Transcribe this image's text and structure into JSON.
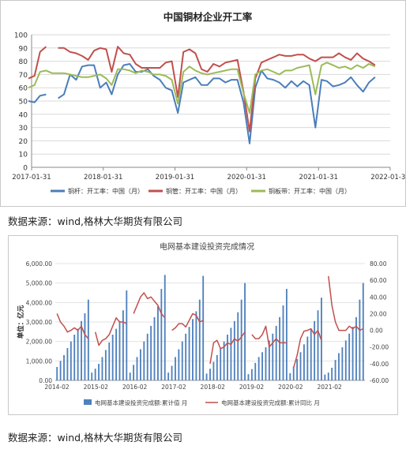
{
  "source_note_1": "数据来源：wind,格林大华期货有限公司",
  "source_note_2": "数据来源：wind,格林大华期货有限公司",
  "chart_data": [
    {
      "type": "line",
      "title": "中国铜材企业开工率",
      "xlabel": "",
      "ylabel": "",
      "ylim": [
        0,
        100
      ],
      "yticks": [
        0,
        10,
        20,
        30,
        40,
        50,
        60,
        70,
        80,
        90,
        100
      ],
      "xlim": [
        "2017-01-31",
        "2022-01-31"
      ],
      "xticks": [
        "2017-01-31",
        "2018-01-31",
        "2019-01-31",
        "2020-01-31",
        "2021-01-31",
        "2022-01-31"
      ],
      "grid": true,
      "legend": "bottom",
      "series": [
        {
          "name": "铜杆：开工率：中国（月）",
          "color": "#4a7ebb",
          "points": [
            [
              "2017-01",
              50
            ],
            [
              "2017-02",
              49
            ],
            [
              "2017-03",
              54
            ],
            [
              "2017-04",
              55
            ],
            [
              "2017-05",
              null
            ],
            [
              "2017-06",
              52
            ],
            [
              "2017-07",
              55
            ],
            [
              "2017-08",
              70
            ],
            [
              "2017-09",
              66
            ],
            [
              "2017-10",
              76
            ],
            [
              "2017-11",
              77
            ],
            [
              "2017-12",
              77
            ],
            [
              "2018-01",
              60
            ],
            [
              "2018-02",
              64
            ],
            [
              "2018-03",
              55
            ],
            [
              "2018-04",
              70
            ],
            [
              "2018-05",
              77
            ],
            [
              "2018-06",
              78
            ],
            [
              "2018-07",
              72
            ],
            [
              "2018-08",
              72
            ],
            [
              "2018-09",
              74
            ],
            [
              "2018-10",
              69
            ],
            [
              "2018-11",
              66
            ],
            [
              "2018-12",
              60
            ],
            [
              "2019-01",
              58
            ],
            [
              "2019-02",
              41
            ],
            [
              "2019-03",
              64
            ],
            [
              "2019-04",
              66
            ],
            [
              "2019-05",
              68
            ],
            [
              "2019-06",
              62
            ],
            [
              "2019-07",
              62
            ],
            [
              "2019-08",
              67
            ],
            [
              "2019-09",
              67
            ],
            [
              "2019-10",
              64
            ],
            [
              "2019-11",
              66
            ],
            [
              "2019-12",
              66
            ],
            [
              "2020-01",
              49
            ],
            [
              "2020-02",
              18
            ],
            [
              "2020-03",
              60
            ],
            [
              "2020-04",
              73
            ],
            [
              "2020-05",
              67
            ],
            [
              "2020-06",
              66
            ],
            [
              "2020-07",
              64
            ],
            [
              "2020-08",
              60
            ],
            [
              "2020-09",
              65
            ],
            [
              "2020-10",
              61
            ],
            [
              "2020-11",
              65
            ],
            [
              "2020-12",
              62
            ],
            [
              "2021-01",
              30
            ],
            [
              "2021-02",
              66
            ],
            [
              "2021-03",
              65
            ],
            [
              "2021-04",
              61
            ],
            [
              "2021-05",
              62
            ],
            [
              "2021-06",
              64
            ],
            [
              "2021-07",
              68
            ],
            [
              "2021-08",
              62
            ],
            [
              "2021-09",
              57
            ],
            [
              "2021-10",
              64
            ],
            [
              "2021-11",
              68
            ]
          ]
        },
        {
          "name": "铜管：开工率：中国（月）",
          "color": "#c0504d",
          "points": [
            [
              "2017-01",
              67
            ],
            [
              "2017-02",
              69
            ],
            [
              "2017-03",
              87
            ],
            [
              "2017-04",
              91
            ],
            [
              "2017-05",
              null
            ],
            [
              "2017-06",
              90
            ],
            [
              "2017-07",
              90
            ],
            [
              "2017-08",
              87
            ],
            [
              "2017-09",
              86
            ],
            [
              "2017-10",
              84
            ],
            [
              "2017-11",
              81
            ],
            [
              "2017-12",
              88
            ],
            [
              "2018-01",
              90
            ],
            [
              "2018-02",
              89
            ],
            [
              "2018-03",
              72
            ],
            [
              "2018-04",
              91
            ],
            [
              "2018-05",
              86
            ],
            [
              "2018-06",
              85
            ],
            [
              "2018-07",
              78
            ],
            [
              "2018-08",
              75
            ],
            [
              "2018-09",
              75
            ],
            [
              "2018-10",
              75
            ],
            [
              "2018-11",
              75
            ],
            [
              "2018-12",
              79
            ],
            [
              "2019-01",
              80
            ],
            [
              "2019-02",
              53
            ],
            [
              "2019-03",
              87
            ],
            [
              "2019-04",
              89
            ],
            [
              "2019-05",
              86
            ],
            [
              "2019-06",
              74
            ],
            [
              "2019-07",
              72
            ],
            [
              "2019-08",
              78
            ],
            [
              "2019-09",
              76
            ],
            [
              "2019-10",
              79
            ],
            [
              "2019-11",
              80
            ],
            [
              "2019-12",
              81
            ],
            [
              "2020-01",
              57
            ],
            [
              "2020-02",
              27
            ],
            [
              "2020-03",
              67
            ],
            [
              "2020-04",
              79
            ],
            [
              "2020-05",
              81
            ],
            [
              "2020-06",
              83
            ],
            [
              "2020-07",
              85
            ],
            [
              "2020-08",
              84
            ],
            [
              "2020-09",
              84
            ],
            [
              "2020-10",
              85
            ],
            [
              "2020-11",
              85
            ],
            [
              "2020-12",
              82
            ],
            [
              "2021-01",
              80
            ],
            [
              "2021-02",
              83
            ],
            [
              "2021-03",
              83
            ],
            [
              "2021-04",
              83
            ],
            [
              "2021-05",
              86
            ],
            [
              "2021-06",
              83
            ],
            [
              "2021-07",
              81
            ],
            [
              "2021-08",
              86
            ],
            [
              "2021-09",
              82
            ],
            [
              "2021-10",
              80
            ],
            [
              "2021-11",
              77
            ]
          ]
        },
        {
          "name": "铜板带：开工率：中国（月）",
          "color": "#9bbb59",
          "points": [
            [
              "2017-01",
              60
            ],
            [
              "2017-02",
              62
            ],
            [
              "2017-03",
              72
            ],
            [
              "2017-04",
              73
            ],
            [
              "2017-05",
              71
            ],
            [
              "2017-06",
              71
            ],
            [
              "2017-07",
              71
            ],
            [
              "2017-08",
              70
            ],
            [
              "2017-09",
              69
            ],
            [
              "2017-10",
              68
            ],
            [
              "2017-11",
              68
            ],
            [
              "2017-12",
              69
            ],
            [
              "2018-01",
              70
            ],
            [
              "2018-02",
              67
            ],
            [
              "2018-03",
              62
            ],
            [
              "2018-04",
              74
            ],
            [
              "2018-05",
              74
            ],
            [
              "2018-06",
              73
            ],
            [
              "2018-07",
              71
            ],
            [
              "2018-08",
              73
            ],
            [
              "2018-09",
              72
            ],
            [
              "2018-10",
              70
            ],
            [
              "2018-11",
              70
            ],
            [
              "2018-12",
              69
            ],
            [
              "2019-01",
              66
            ],
            [
              "2019-02",
              48
            ],
            [
              "2019-03",
              72
            ],
            [
              "2019-04",
              76
            ],
            [
              "2019-05",
              73
            ],
            [
              "2019-06",
              71
            ],
            [
              "2019-07",
              70
            ],
            [
              "2019-08",
              71
            ],
            [
              "2019-09",
              72
            ],
            [
              "2019-10",
              73
            ],
            [
              "2019-11",
              74
            ],
            [
              "2019-12",
              74
            ],
            [
              "2020-01",
              56
            ],
            [
              "2020-02",
              41
            ],
            [
              "2020-03",
              70
            ],
            [
              "2020-04",
              73
            ],
            [
              "2020-05",
              74
            ],
            [
              "2020-06",
              72
            ],
            [
              "2020-07",
              70
            ],
            [
              "2020-08",
              73
            ],
            [
              "2020-09",
              73
            ],
            [
              "2020-10",
              75
            ],
            [
              "2020-11",
              76
            ],
            [
              "2020-12",
              77
            ],
            [
              "2021-01",
              55
            ],
            [
              "2021-02",
              77
            ],
            [
              "2021-03",
              79
            ],
            [
              "2021-04",
              77
            ],
            [
              "2021-05",
              75
            ],
            [
              "2021-06",
              76
            ],
            [
              "2021-07",
              74
            ],
            [
              "2021-08",
              77
            ],
            [
              "2021-09",
              75
            ],
            [
              "2021-10",
              78
            ],
            [
              "2021-11",
              76
            ]
          ]
        }
      ]
    },
    {
      "type": "bar",
      "title": "电网基本建设投资完成情况",
      "ylabel": "单位：亿元",
      "ylim": [
        0,
        6000
      ],
      "yticks": [
        "0.00",
        "1,000.00",
        "2,000.00",
        "3,000.00",
        "4,000.00",
        "5,000.00",
        "6,000.00"
      ],
      "y2lim": [
        -60,
        80
      ],
      "y2ticks": [
        "-60.00",
        "-40.00",
        "-20.00",
        "0.00",
        "20.00",
        "40.00",
        "60.00",
        "80.00"
      ],
      "xticks": [
        "2014-02",
        "2015-02",
        "2016-02",
        "2017-02",
        "2018-02",
        "2019-02",
        "2020-02",
        "2021-02"
      ],
      "legend": "bottom",
      "series": [
        {
          "name": "电网基本建设投资完成额:累计值 月",
          "color": "#4f81bd",
          "axis": "left",
          "values": [
            690,
            1000,
            1300,
            1660,
            2000,
            2350,
            2650,
            3050,
            3450,
            4150,
            400,
            600,
            850,
            1200,
            1560,
            1950,
            2350,
            2650,
            3050,
            3600,
            4620,
            400,
            800,
            1200,
            1600,
            2000,
            2400,
            2800,
            3250,
            3800,
            4700,
            5420,
            400,
            750,
            1200,
            1600,
            2000,
            2400,
            2750,
            3150,
            3550,
            4150,
            5370,
            350,
            600,
            950,
            1300,
            1650,
            2000,
            2350,
            2700,
            3050,
            3500,
            4150,
            5000,
            320,
            580,
            900,
            1200,
            1450,
            1700,
            2050,
            2400,
            2800,
            3250,
            3850,
            4700,
            370,
            700,
            1100,
            1450,
            1850,
            2250,
            2650,
            3050,
            3600,
            4250,
            300,
            400,
            650,
            1050,
            1400,
            1700,
            2050,
            2400,
            2750,
            3250,
            4150,
            5000
          ]
        },
        {
          "name": "电网基本建设投资完成额:累计同比 月",
          "color": "#c0504d",
          "axis": "right",
          "values": [
            20,
            10,
            5,
            -2,
            0,
            3,
            0,
            5,
            -5,
            -10,
            null,
            -2,
            -18,
            -12,
            -10,
            -5,
            5,
            15,
            10,
            10,
            8,
            null,
            20,
            30,
            40,
            45,
            38,
            40,
            35,
            30,
            20,
            15,
            null,
            0,
            3,
            8,
            8,
            4,
            12,
            20,
            18,
            10,
            12,
            null,
            -40,
            -15,
            -12,
            -22,
            -20,
            -15,
            -17,
            -10,
            -13,
            -8,
            -2,
            null,
            -5,
            -10,
            -10,
            -5,
            5,
            -20,
            -15,
            -10,
            -15,
            -15,
            -15,
            null,
            -45,
            -30,
            -10,
            -1,
            0,
            2,
            -5,
            0,
            -12,
            null,
            65,
            30,
            10,
            0,
            0,
            0,
            5,
            2,
            5,
            0,
            2
          ]
        }
      ]
    }
  ]
}
